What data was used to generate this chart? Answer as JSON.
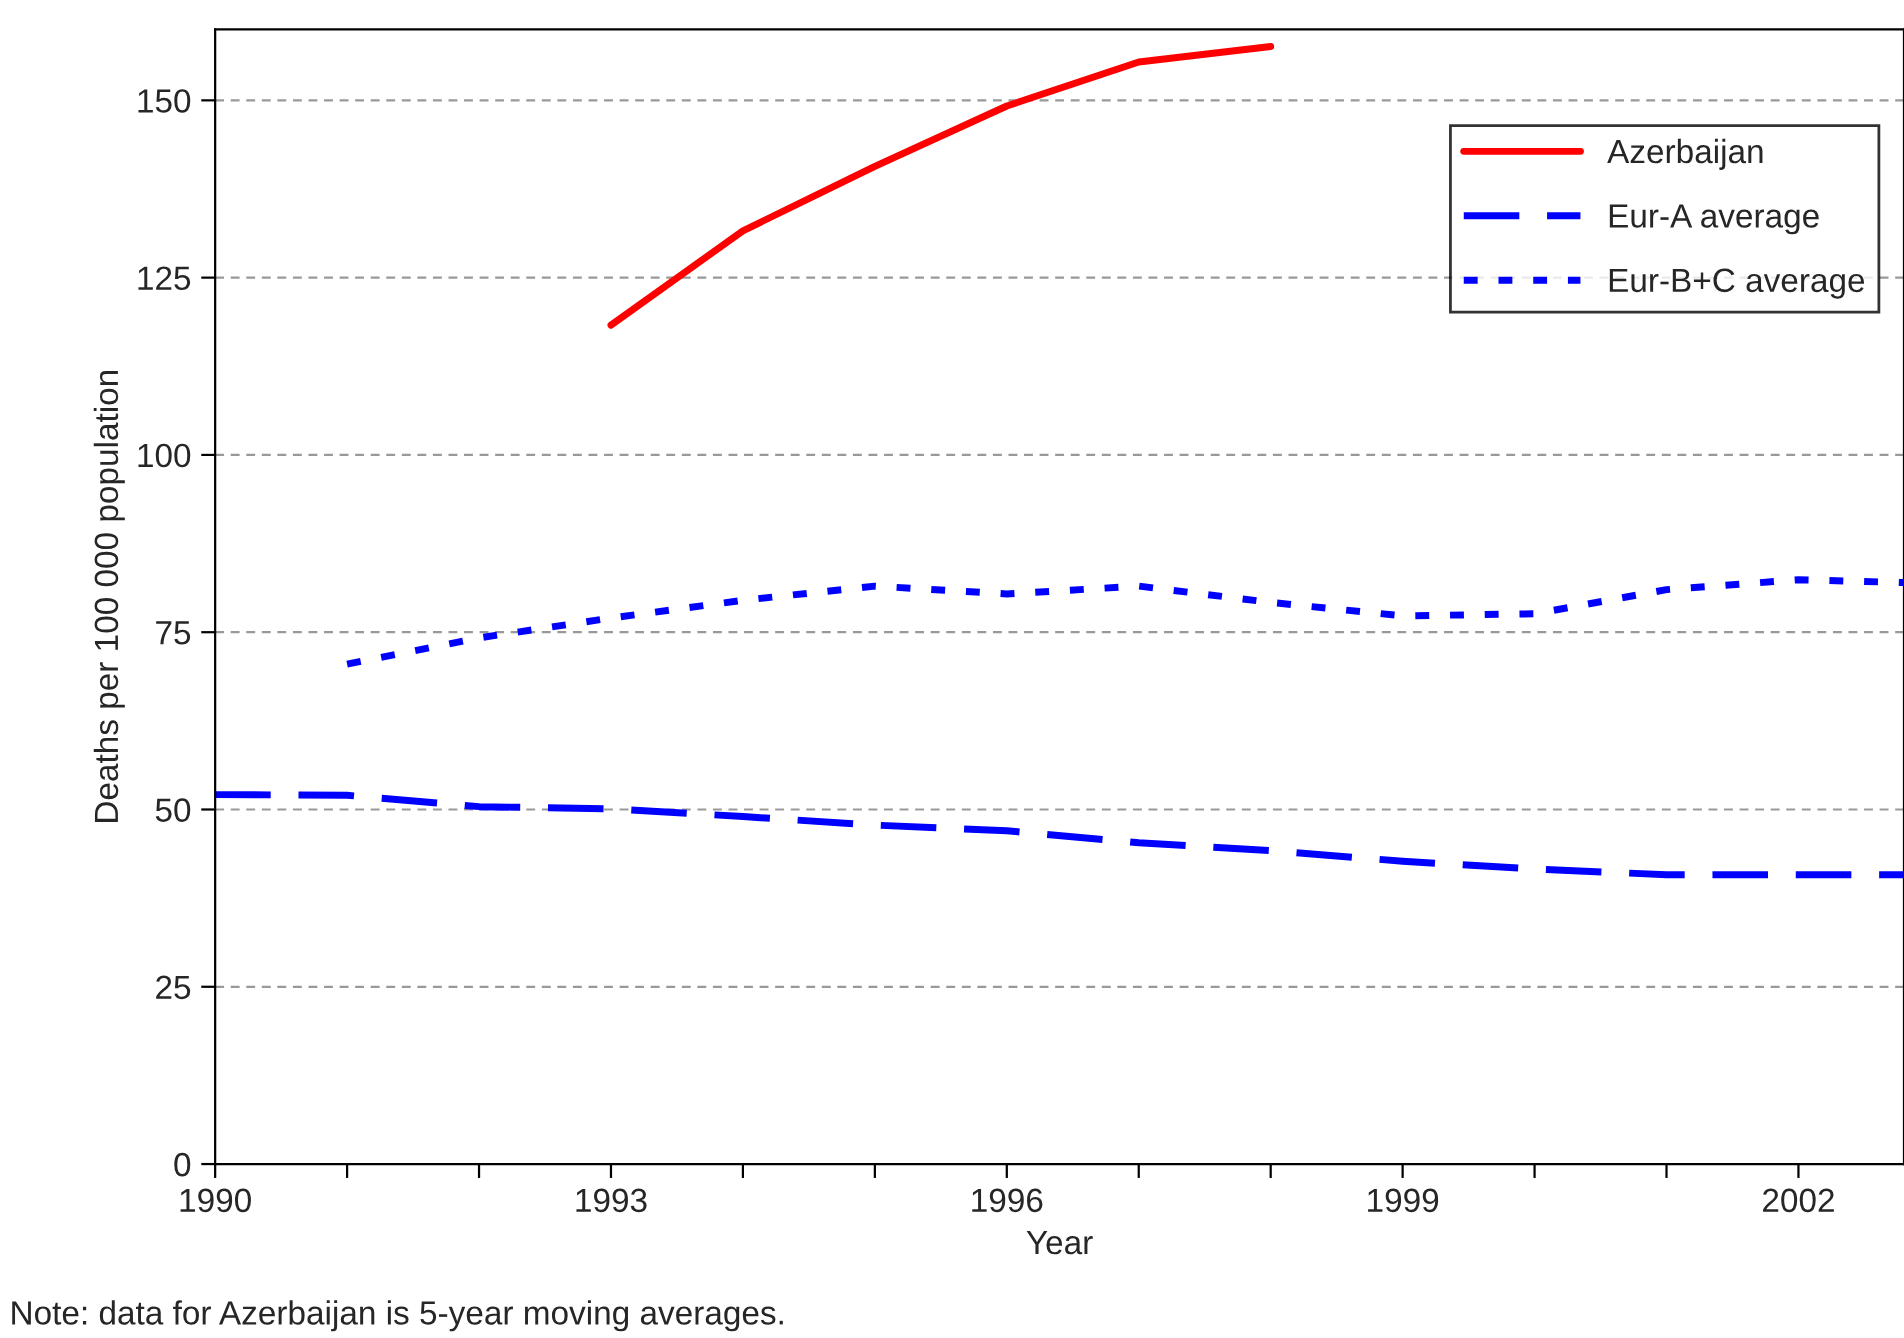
{
  "chart_data": {
    "type": "line",
    "xlabel": "Year",
    "ylabel": "Deaths per 100 000 population",
    "annotations": [
      "Note: data for Azerbaijan is 5-year moving averages."
    ],
    "xlim": [
      1990,
      2002.8
    ],
    "ylim": [
      0,
      160
    ],
    "xticks": [
      1990,
      {
        "value": 1991,
        "label": null
      },
      {
        "value": 1992,
        "label": null
      },
      1993,
      {
        "value": 1994,
        "label": null
      },
      {
        "value": 1995,
        "label": null
      },
      1996,
      {
        "value": 1997,
        "label": null
      },
      {
        "value": 1998,
        "label": null
      },
      1999,
      {
        "value": 2000,
        "label": null
      },
      {
        "value": 2001,
        "label": null
      },
      2002
    ],
    "yticks": [
      0,
      25,
      50,
      75,
      100,
      125,
      150
    ],
    "grid": "y",
    "legend": "top right",
    "series": [
      {
        "name": "Azerbaijan",
        "color": "#ff0000",
        "line_style": "solid",
        "x": [
          1993,
          1994,
          1995,
          1996,
          1997,
          1998
        ],
        "values": [
          118.3,
          131.6,
          140.7,
          149.2,
          155.4,
          157.6
        ]
      },
      {
        "name": "Eur-A average",
        "color": "#0000ff",
        "line_style": "dashed",
        "x": [
          1990,
          1991,
          1992,
          1993,
          1994,
          1995,
          1996,
          1997,
          1998,
          1999,
          2000,
          2001,
          2002,
          2002.8
        ],
        "values": [
          52.1,
          52,
          50.4,
          50.1,
          49,
          47.8,
          47,
          45.3,
          44.2,
          42.7,
          41.6,
          40.8,
          40.8,
          40.8
        ]
      },
      {
        "name": "Eur-B+C average",
        "color": "#0000ff",
        "line_style": "dotted",
        "x": [
          1991,
          1992,
          1993,
          1994,
          1995,
          1996,
          1997,
          1998,
          1999,
          2000,
          2001,
          2002,
          2002.8
        ],
        "values": [
          70.5,
          74.2,
          77,
          79.5,
          81.5,
          80.4,
          81.5,
          79.2,
          77.3,
          77.6,
          81,
          82.4,
          82
        ]
      }
    ]
  }
}
